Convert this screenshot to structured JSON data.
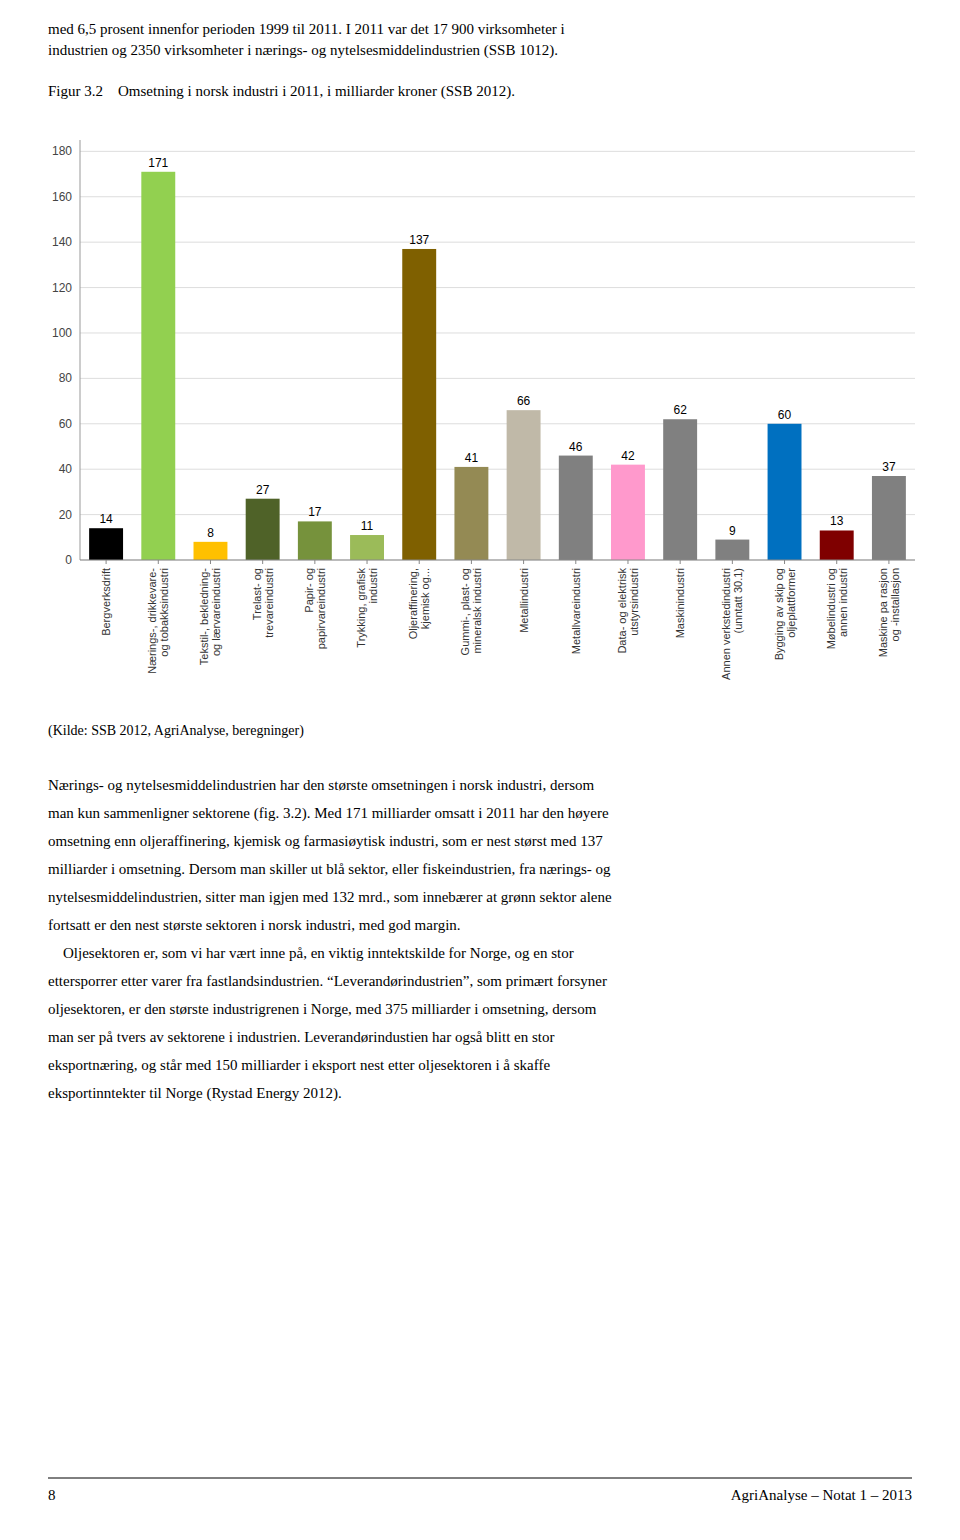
{
  "chart_data": {
    "type": "bar",
    "title": "Figur 3.2    Omsetning i norsk industri i 2011, i milliarder kroner (SSB 2012).",
    "annotations": [
      "(Kilde: SSB 2012, AgriAnalyse, beregninger)"
    ],
    "categories": [
      "Bergverksdrift",
      "Nærings-, drikkevare-\nog tobakksindustri",
      "Tekstil-, bekledning-\nog lærvareindustri",
      "Trelast- og\ntrevareindustri",
      "Papir- og\npapirvareindustri",
      "Trykking, grafisk\nindustri",
      "Oljeraffinering,\nkjemisk og...",
      "Gummi-, plast- og\nmineralsk industri",
      "Metallindustri",
      "Metallvareindustri",
      "Data- og elektrisk\nutstyrsindustri",
      "Maskinindustri",
      "Annen verkstedindustri\n(unntatt 30.1)",
      "Bygging av skip og\noljeplattformer",
      "Møbelindustri og\nannen industri",
      "Maskine pa rasjon\nog -installasjon"
    ],
    "values": [
      14,
      171,
      8,
      27,
      17,
      11,
      137,
      41,
      66,
      46,
      42,
      62,
      9,
      60,
      13,
      37
    ],
    "colors": [
      "#000000",
      "#92d050",
      "#ffc000",
      "#4f6228",
      "#76923c",
      "#9bbb59",
      "#7f6000",
      "#948a54",
      "#c0b9a8",
      "#808080",
      "#ff99cc",
      "#808080",
      "#808080",
      "#0070c0",
      "#7f0000",
      "#808080"
    ],
    "ylim": [
      0,
      185
    ],
    "yticks": [
      0,
      20,
      40,
      60,
      80,
      100,
      120,
      140,
      160,
      180
    ],
    "grid": true,
    "data_labels": true
  },
  "text_above": [
    "med 6,5 prosent innenfor perioden 1999 til 2011. I 2011 var det 17 900 virksomheter i",
    "industrien og 2350 virksomheter i nærings- og nytelsesmiddelindustrien (SSB 1012)."
  ],
  "text_body": [
    "Nærings- og nytelsesmiddelindustrien har den største omsetningen i norsk industri, dersom",
    "man kun sammenligner sektorene (fig. 3.2). Med 171 milliarder omsatt i 2011 har den høyere",
    "omsetning enn oljeraffinering, kjemisk og farmasiøytisk industri, som er nest størst med 137",
    "milliarder i omsetning. Dersom man skiller ut blå sektor, eller fiskeindustrien, fra nærings- og",
    "nytelsesmiddelindustrien, sitter man igjen med 132 mrd., som innebærer at grønn sektor alene",
    "fortsatt er den nest største sektoren i norsk industri, med god margin.",
    "    Oljesektoren er, som vi har vært inne på, en viktig inntektskilde for Norge, og en stor",
    "ettersporrer etter varer fra fastlandsindustrien. “Leverandørindustrien”, som primært forsyner",
    "oljesektoren, er den største industrigrenen i Norge, med 375 milliarder i omsetning, dersom",
    "man ser på tvers av sektorene i industrien. Leverandørindustien har også blitt en stor",
    "eksportnæring, og står med 150 milliarder i eksport nest etter oljesektoren i å skaffe",
    "eksportinntekter til Norge (Rystad Energy 2012)."
  ],
  "footer_left": "8",
  "footer_right": "AgriAnalyse – Notat 1 – 2013"
}
